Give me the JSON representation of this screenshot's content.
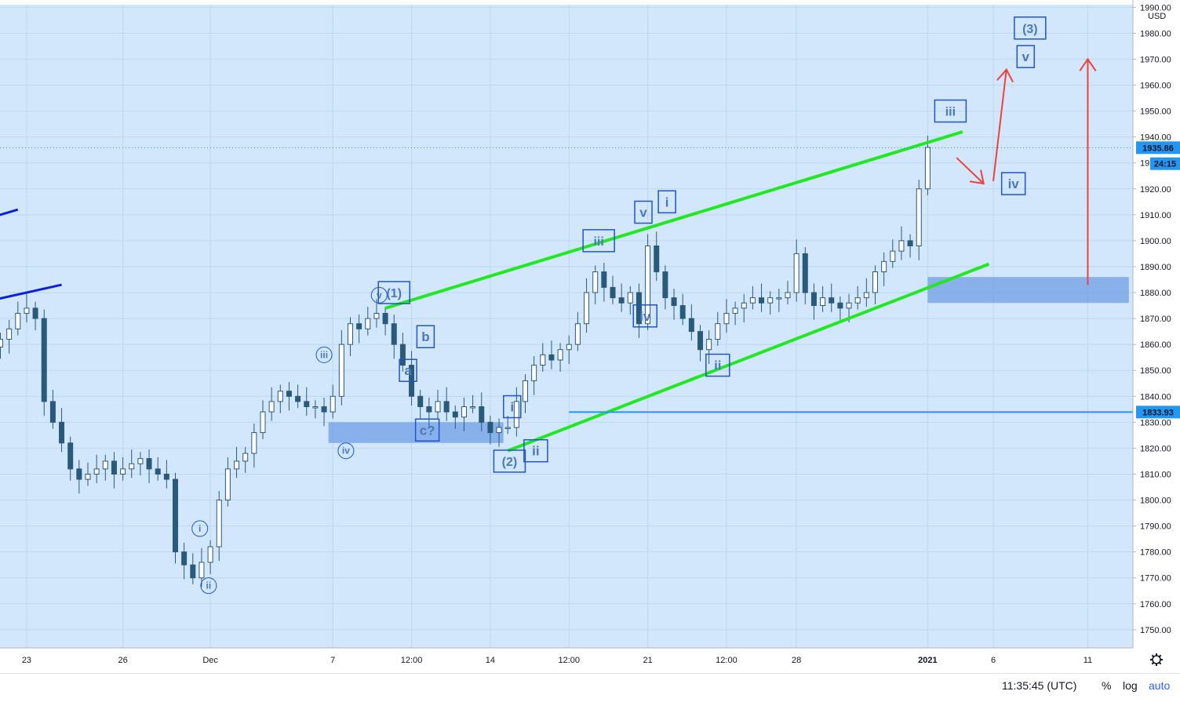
{
  "currency": "USD",
  "status_bar": {
    "time": "11:35:45 (UTC)",
    "percent_label": "%",
    "log_label": "log",
    "auto_label": "auto"
  },
  "icons": {
    "settings": "gear-icon"
  },
  "colors": {
    "background": "#d2e7fb",
    "grid": "#bcd7f1",
    "up": "#2a5a7a",
    "down": "#2a5a7a",
    "channel": "#22e822",
    "trend": "#0b1fe0",
    "target_arrow": "#f0413a",
    "support_line": "#2196f3",
    "zone": "#6f9de4",
    "wave_label": "#1f55c8",
    "price_badge": "#2196f3"
  },
  "chart_data": {
    "type": "candlestick",
    "title": "",
    "currency": "USD",
    "ylim": [
      1743,
      1991
    ],
    "y_ticks": [
      1750,
      1760,
      1770,
      1780,
      1790,
      1800,
      1810,
      1820,
      1830,
      1840,
      1850,
      1860,
      1870,
      1880,
      1890,
      1900,
      1910,
      1920,
      1930,
      1940,
      1950,
      1960,
      1970,
      1980,
      1990
    ],
    "x_ticks": [
      {
        "label": "23",
        "bar": 3
      },
      {
        "label": "26",
        "bar": 14
      },
      {
        "label": "Dec",
        "bar": 24
      },
      {
        "label": "7",
        "bar": 38
      },
      {
        "label": "12:00",
        "bar": 47
      },
      {
        "label": "14",
        "bar": 56
      },
      {
        "label": "12:00",
        "bar": 65
      },
      {
        "label": "21",
        "bar": 74
      },
      {
        "label": "12:00",
        "bar": 83
      },
      {
        "label": "28",
        "bar": 91
      },
      {
        "label": "2021",
        "bar": 106
      },
      {
        "label": "6",
        "bar": 113.5
      },
      {
        "label": "11",
        "bar": 124.3
      }
    ],
    "ohlc_close": [
      1862,
      1866,
      1872,
      1874,
      1870,
      1838,
      1830,
      1822,
      1812,
      1808,
      1810,
      1812,
      1815,
      1810,
      1812,
      1814,
      1816,
      1812,
      1810,
      1808,
      1780,
      1775,
      1770,
      1776,
      1782,
      1800,
      1812,
      1815,
      1818,
      1826,
      1834,
      1838,
      1842,
      1840,
      1838,
      1836,
      1836,
      1834,
      1840,
      1860,
      1868,
      1866,
      1870,
      1872,
      1868,
      1860,
      1852,
      1840,
      1836,
      1834,
      1838,
      1834,
      1832,
      1836,
      1836,
      1830,
      1826,
      1828,
      1828,
      1838,
      1846,
      1852,
      1856,
      1854,
      1858,
      1860,
      1868,
      1880,
      1888,
      1882,
      1878,
      1876,
      1880,
      1868,
      1898,
      1888,
      1878,
      1875,
      1870,
      1865,
      1858,
      1862,
      1868,
      1872,
      1874,
      1876,
      1878,
      1876,
      1878,
      1878,
      1880,
      1895,
      1880,
      1875,
      1878,
      1876,
      1874,
      1876,
      1878,
      1880,
      1888,
      1892,
      1896,
      1900,
      1898,
      1920,
      1936
    ],
    "series": [
      {
        "name": "channel upper",
        "x": [
          44,
          110
        ],
        "y": [
          1874,
          1942
        ]
      },
      {
        "name": "channel lower",
        "x": [
          58,
          113
        ],
        "y": [
          1819,
          1891
        ]
      },
      {
        "name": "trend left 1",
        "x": [
          -1,
          2
        ],
        "y": [
          1909,
          1912
        ]
      },
      {
        "name": "trend left 2",
        "x": [
          -1,
          7
        ],
        "y": [
          1877,
          1883
        ]
      },
      {
        "name": "support",
        "x": [
          65,
          130
        ],
        "y": [
          1833.93,
          1833.93
        ]
      }
    ],
    "zones": [
      {
        "name": "zone 1",
        "x": [
          37.5,
          57.5
        ],
        "y": [
          1822,
          1830
        ]
      },
      {
        "name": "zone 2",
        "x": [
          106,
          129
        ],
        "y": [
          1876,
          1886
        ]
      }
    ],
    "arrows": [
      {
        "name": "arrow to iv",
        "x": [
          109.3,
          112.4
        ],
        "y": [
          1932,
          1922
        ]
      },
      {
        "name": "arrow to v",
        "x": [
          113.5,
          115
        ],
        "y": [
          1923,
          1966
        ]
      },
      {
        "name": "arrow long",
        "x": [
          124.3,
          124.3
        ],
        "y": [
          1883,
          1970
        ]
      }
    ],
    "wave_labels": [
      {
        "text": "i",
        "x": 22.8,
        "y": 1789,
        "circle": true
      },
      {
        "text": "ii",
        "x": 23.8,
        "y": 1767,
        "circle": true
      },
      {
        "text": "iii",
        "x": 37,
        "y": 1856,
        "circle": true
      },
      {
        "text": "iv",
        "x": 39.5,
        "y": 1819,
        "circle": true
      },
      {
        "text": "v",
        "x": 43.3,
        "y": 1879,
        "circle": true
      },
      {
        "text": "(1)",
        "x": 45,
        "y": 1880,
        "circle": false
      },
      {
        "text": "b",
        "x": 48.6,
        "y": 1863,
        "circle": false
      },
      {
        "text": "a",
        "x": 46.6,
        "y": 1850,
        "circle": false
      },
      {
        "text": "c?",
        "x": 48.8,
        "y": 1827,
        "circle": false
      },
      {
        "text": "i",
        "x": 58.5,
        "y": 1836,
        "circle": false
      },
      {
        "text": "ii",
        "x": 61.2,
        "y": 1819,
        "circle": false
      },
      {
        "text": "(2)",
        "x": 58.2,
        "y": 1815,
        "circle": false
      },
      {
        "text": "iii",
        "x": 68.4,
        "y": 1900,
        "circle": false
      },
      {
        "text": "v",
        "x": 73.5,
        "y": 1911,
        "circle": false
      },
      {
        "text": "i",
        "x": 76.2,
        "y": 1915,
        "circle": false
      },
      {
        "text": "iv",
        "x": 73.7,
        "y": 1871,
        "circle": false
      },
      {
        "text": "ii",
        "x": 82,
        "y": 1852,
        "circle": false
      },
      {
        "text": "iii",
        "x": 108.6,
        "y": 1950,
        "circle": false
      },
      {
        "text": "iv",
        "x": 115.8,
        "y": 1922,
        "circle": false
      },
      {
        "text": "v",
        "x": 117.2,
        "y": 1971,
        "circle": false
      },
      {
        "text": "(3)",
        "x": 117.7,
        "y": 1982,
        "circle": false
      }
    ],
    "price_badges": [
      {
        "value": "1935.86",
        "y": 1935.86
      },
      {
        "value": "24:15",
        "y": 1929.7
      },
      {
        "value": "1833.93",
        "y": 1833.93
      }
    ]
  }
}
